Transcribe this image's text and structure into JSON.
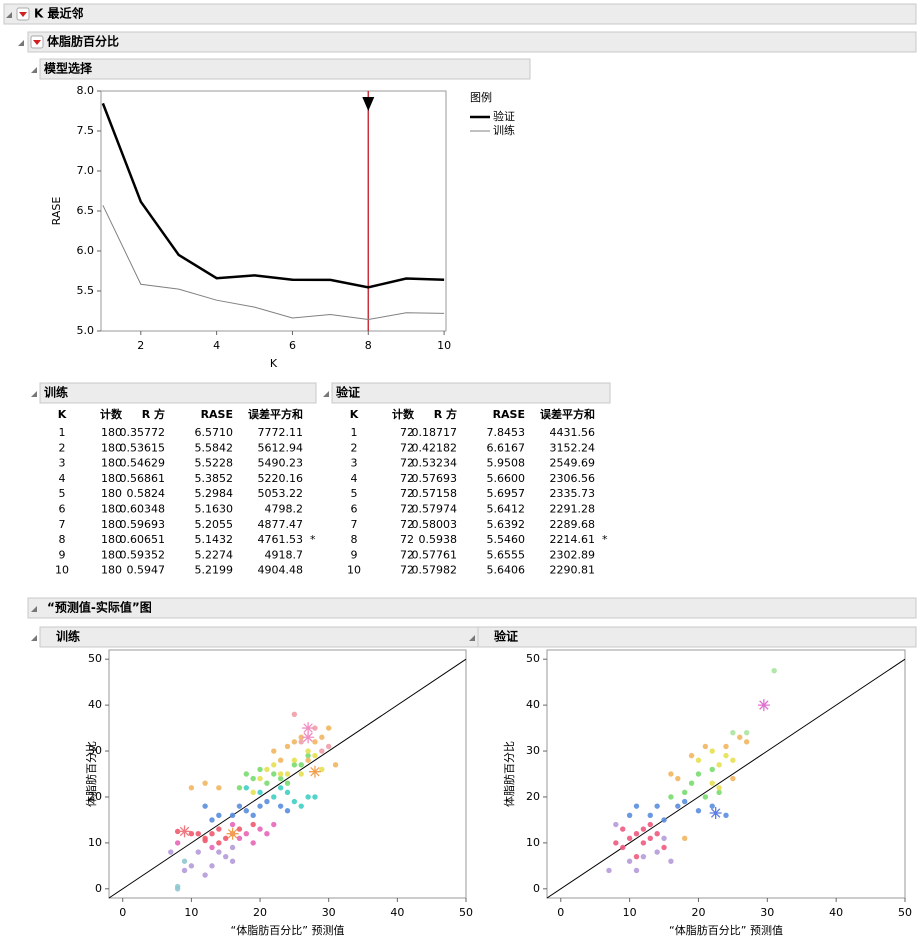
{
  "header": {
    "title": "K 最近邻",
    "response": "体脂肪百分比"
  },
  "model_selection": {
    "title": "模型选择",
    "chart_data": {
      "type": "line",
      "x": [
        1,
        2,
        3,
        4,
        5,
        6,
        7,
        8,
        9,
        10
      ],
      "xlabel": "K",
      "ylabel": "RASE",
      "xlim": [
        0.95,
        10.05
      ],
      "ylim": [
        5,
        8
      ],
      "xticks": [
        2,
        4,
        6,
        8,
        10
      ],
      "yticks": [
        {
          "value": 5,
          "label": "5.0"
        },
        {
          "value": 5.5,
          "label": "5.5"
        },
        {
          "value": 6,
          "label": "6.0"
        },
        {
          "value": 6.5,
          "label": "6.5"
        },
        {
          "value": 7,
          "label": "7.0"
        },
        {
          "value": 7.5,
          "label": "7.5"
        },
        {
          "value": 8,
          "label": "8.0"
        }
      ],
      "legend_title": "图例",
      "series": [
        {
          "name": "验证",
          "color": "#000000",
          "width": 2.5,
          "values": [
            7.8453,
            6.6167,
            5.9508,
            5.66,
            5.6957,
            5.6412,
            5.6392,
            5.546,
            5.6555,
            5.6406
          ]
        },
        {
          "name": "训练",
          "color": "#808080",
          "width": 1,
          "values": [
            6.571,
            5.5842,
            5.5228,
            5.3852,
            5.2984,
            5.163,
            5.2055,
            5.1432,
            5.2274,
            5.2199
          ]
        }
      ],
      "selected_x": 8,
      "selected_color": "#c8323c"
    }
  },
  "tables": [
    {
      "title": "训练",
      "columns": [
        "K",
        "计数",
        "R 方",
        "RASE",
        "误差平方和"
      ],
      "rows": [
        [
          "1",
          "180",
          "0.35772",
          "6.5710",
          "7772.11"
        ],
        [
          "2",
          "180",
          "0.53615",
          "5.5842",
          "5612.94"
        ],
        [
          "3",
          "180",
          "0.54629",
          "5.5228",
          "5490.23"
        ],
        [
          "4",
          "180",
          "0.56861",
          "5.3852",
          "5220.16"
        ],
        [
          "5",
          "180",
          "0.5824",
          "5.2984",
          "5053.22"
        ],
        [
          "6",
          "180",
          "0.60348",
          "5.1630",
          "4798.2"
        ],
        [
          "7",
          "180",
          "0.59693",
          "5.2055",
          "4877.47"
        ],
        [
          "8",
          "180",
          "0.60651",
          "5.1432",
          "4761.53",
          "*"
        ],
        [
          "9",
          "180",
          "0.59352",
          "5.2274",
          "4918.7"
        ],
        [
          "10",
          "180",
          "0.5947",
          "5.2199",
          "4904.48"
        ]
      ]
    },
    {
      "title": "验证",
      "columns": [
        "K",
        "计数",
        "R 方",
        "RASE",
        "误差平方和"
      ],
      "rows": [
        [
          "1",
          "72",
          "0.18717",
          "7.8453",
          "4431.56"
        ],
        [
          "2",
          "72",
          "0.42182",
          "6.6167",
          "3152.24"
        ],
        [
          "3",
          "72",
          "0.53234",
          "5.9508",
          "2549.69"
        ],
        [
          "4",
          "72",
          "0.57693",
          "5.6600",
          "2306.56"
        ],
        [
          "5",
          "72",
          "0.57158",
          "5.6957",
          "2335.73"
        ],
        [
          "6",
          "72",
          "0.57974",
          "5.6412",
          "2291.28"
        ],
        [
          "7",
          "72",
          "0.58003",
          "5.6392",
          "2289.68"
        ],
        [
          "8",
          "72",
          "0.5938",
          "5.5460",
          "2214.61",
          "*"
        ],
        [
          "9",
          "72",
          "0.57761",
          "5.6555",
          "2302.89"
        ],
        [
          "10",
          "72",
          "0.57982",
          "5.6406",
          "2290.81"
        ]
      ]
    }
  ],
  "pred_actual": {
    "title": "“预测值-实际值”图",
    "panels": [
      {
        "title": "训练",
        "chart_data": {
          "type": "scatter",
          "xlabel": "“体脂肪百分比” 预测值",
          "ylabel": "体脂肪百分比",
          "xlim": [
            -2,
            50
          ],
          "ylim": [
            -2,
            52
          ],
          "xticks": [
            0,
            10,
            20,
            30,
            40,
            50
          ],
          "yticks": [
            0,
            10,
            20,
            30,
            40,
            50
          ],
          "series": [
            {
              "color": "#f05a6e",
              "x": [
                8,
                10,
                12,
                13,
                14,
                15,
                16,
                17,
                14,
                12,
                19,
                11
              ],
              "y": [
                12.5,
                12,
                11,
                12,
                13,
                11,
                12,
                13,
                10,
                10.5,
                14,
                12
              ]
            },
            {
              "color": "#e866b8",
              "x": [
                18,
                20,
                21,
                19,
                16,
                13,
                17,
                22,
                8
              ],
              "y": [
                12,
                13,
                12,
                10,
                14,
                9,
                11,
                14,
                10
              ]
            },
            {
              "color": "#b59ad8",
              "x": [
                9,
                10,
                13,
                14,
                15,
                16,
                12,
                7,
                16,
                11
              ],
              "y": [
                4,
                5,
                5,
                8,
                7,
                6,
                3,
                8,
                9,
                8
              ]
            },
            {
              "color": "#8fc8d0",
              "x": [
                8,
                8,
                9
              ],
              "y": [
                0.5,
                0,
                6
              ]
            },
            {
              "color": "#5b8ede",
              "x": [
                12,
                14,
                16,
                17,
                18,
                19,
                21,
                23,
                24,
                13,
                20
              ],
              "y": [
                18,
                16,
                16,
                18,
                17,
                16,
                19,
                18,
                17,
                15,
                18
              ]
            },
            {
              "color": "#3fcfc4",
              "x": [
                22,
                24,
                25,
                26,
                27,
                20,
                18,
                23,
                28
              ],
              "y": [
                20,
                21,
                19,
                18,
                20,
                21,
                22,
                22,
                20
              ]
            },
            {
              "color": "#78dc6e",
              "x": [
                17,
                19,
                20,
                21,
                22,
                23,
                26,
                27,
                25,
                18,
                24
              ],
              "y": [
                22,
                24,
                26,
                23,
                25,
                24,
                27,
                29,
                27,
                25,
                23
              ]
            },
            {
              "color": "#e6e052",
              "x": [
                20,
                21,
                22,
                23,
                24,
                25,
                27,
                28,
                19,
                26,
                29
              ],
              "y": [
                24,
                26,
                27,
                25,
                25,
                28,
                30,
                29,
                21,
                25,
                26
              ]
            },
            {
              "color": "#f2b660",
              "x": [
                22,
                24,
                26,
                28,
                27,
                29,
                30,
                23,
                25,
                31,
                12,
                10,
                14
              ],
              "y": [
                30,
                31,
                33,
                32,
                28,
                33,
                35,
                28,
                32,
                27,
                23,
                22,
                22
              ]
            },
            {
              "color": "#f0a0a8",
              "x": [
                25,
                28,
                26,
                30,
                29
              ],
              "y": [
                38,
                35,
                32,
                31,
                30
              ]
            },
            {
              "color": "#f07880",
              "marker": "star",
              "x": [
                9
              ],
              "y": [
                12.5
              ]
            },
            {
              "color": "#f2a050",
              "marker": "star",
              "x": [
                16,
                28
              ],
              "y": [
                12,
                25.5
              ]
            },
            {
              "color": "#f090c0",
              "marker": "star",
              "x": [
                27,
                27
              ],
              "y": [
                33,
                35
              ]
            }
          ]
        }
      },
      {
        "title": "验证",
        "chart_data": {
          "type": "scatter",
          "xlabel": "“体脂肪百分比” 预测值",
          "ylabel": "体脂肪百分比",
          "xlim": [
            -2,
            50
          ],
          "ylim": [
            -2,
            52
          ],
          "xticks": [
            0,
            10,
            20,
            30,
            40,
            50
          ],
          "yticks": [
            0,
            10,
            20,
            30,
            40,
            50
          ],
          "series": [
            {
              "color": "#f05a80",
              "x": [
                9,
                10,
                11,
                12,
                13,
                14,
                15,
                12,
                11,
                8,
                13,
                9
              ],
              "y": [
                9,
                11,
                12,
                13,
                11,
                12,
                9,
                10,
                7,
                10,
                14,
                13
              ]
            },
            {
              "color": "#b59ad8",
              "x": [
                7,
                10,
                11,
                14,
                16,
                12,
                8,
                15
              ],
              "y": [
                4,
                6,
                4,
                8,
                6,
                7,
                14,
                11
              ]
            },
            {
              "color": "#5b8ede",
              "x": [
                10,
                13,
                14,
                17,
                18,
                20,
                22,
                24,
                15,
                11
              ],
              "y": [
                16,
                16,
                18,
                18,
                19,
                17,
                18,
                16,
                15,
                18
              ]
            },
            {
              "color": "#78dc6e",
              "x": [
                16,
                18,
                19,
                20,
                22,
                21,
                23
              ],
              "y": [
                20,
                21,
                23,
                25,
                26,
                20,
                21
              ]
            },
            {
              "color": "#e6e052",
              "x": [
                20,
                22,
                23,
                24,
                25,
                22,
                23
              ],
              "y": [
                28,
                30,
                27,
                29,
                28,
                23,
                22
              ]
            },
            {
              "color": "#f2b660",
              "x": [
                16,
                19,
                21,
                24,
                26,
                27,
                25,
                17,
                18
              ],
              "y": [
                25,
                29,
                31,
                31,
                33,
                32,
                24,
                24,
                11
              ]
            },
            {
              "color": "#a8e4a0",
              "x": [
                25,
                27,
                31
              ],
              "y": [
                34,
                34,
                47.5
              ]
            },
            {
              "color": "#e070d0",
              "marker": "star",
              "x": [
                29.5
              ],
              "y": [
                40
              ]
            },
            {
              "color": "#5b7ee0",
              "marker": "star",
              "x": [
                22.5
              ],
              "y": [
                16.5
              ]
            }
          ]
        }
      }
    ]
  }
}
